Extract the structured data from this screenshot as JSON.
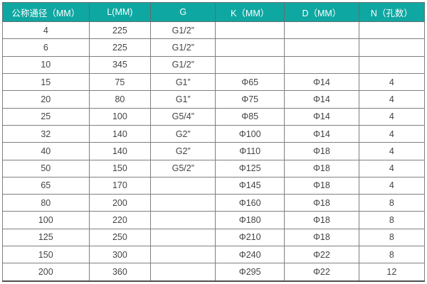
{
  "table": {
    "columns": [
      "公称通径（MM）",
      "L(MM)",
      "G",
      "K（MM）",
      "D（MM）",
      "N（孔数）"
    ],
    "rows": [
      [
        "4",
        "225",
        "G1/2”",
        "",
        "",
        ""
      ],
      [
        "6",
        "225",
        "G1/2”",
        "",
        "",
        ""
      ],
      [
        "10",
        "345",
        "G1/2”",
        "",
        "",
        ""
      ],
      [
        "15",
        "75",
        "G1”",
        "Φ65",
        "Φ14",
        "4"
      ],
      [
        "20",
        "80",
        "G1”",
        "Φ75",
        "Φ14",
        "4"
      ],
      [
        "25",
        "100",
        "G5/4”",
        "Φ85",
        "Φ14",
        "4"
      ],
      [
        "32",
        "140",
        "G2”",
        "Φ100",
        "Φ14",
        "4"
      ],
      [
        "40",
        "140",
        "G2”",
        "Φ110",
        "Φ18",
        "4"
      ],
      [
        "50",
        "150",
        "G5/2”",
        "Φ125",
        "Φ18",
        "4"
      ],
      [
        "65",
        "170",
        "",
        "Φ145",
        "Φ18",
        "4"
      ],
      [
        "80",
        "200",
        "",
        "Φ160",
        "Φ18",
        "8"
      ],
      [
        "100",
        "220",
        "",
        "Φ180",
        "Φ18",
        "8"
      ],
      [
        "125",
        "250",
        "",
        "Φ210",
        "Φ18",
        "8"
      ],
      [
        "150",
        "300",
        "",
        "Φ240",
        "Φ22",
        "8"
      ],
      [
        "200",
        "360",
        "",
        "Φ295",
        "Φ22",
        "12"
      ]
    ],
    "colors": {
      "header_bg": "#0fa7a2",
      "header_text": "#ffffff",
      "border": "#7f7f7f",
      "outer_border": "#a8a8a8",
      "bottom_border": "#4f4f4f",
      "cell_text": "#444444",
      "row_bg": "#ffffff"
    }
  },
  "chart_data": {
    "type": "table",
    "title": "",
    "columns": [
      "公称通径（MM）",
      "L(MM)",
      "G",
      "K（MM）",
      "D（MM）",
      "N（孔数）"
    ],
    "rows": [
      [
        "4",
        "225",
        "G1/2”",
        "",
        "",
        ""
      ],
      [
        "6",
        "225",
        "G1/2”",
        "",
        "",
        ""
      ],
      [
        "10",
        "345",
        "G1/2”",
        "",
        "",
        ""
      ],
      [
        "15",
        "75",
        "G1”",
        "Φ65",
        "Φ14",
        "4"
      ],
      [
        "20",
        "80",
        "G1”",
        "Φ75",
        "Φ14",
        "4"
      ],
      [
        "25",
        "100",
        "G5/4”",
        "Φ85",
        "Φ14",
        "4"
      ],
      [
        "32",
        "140",
        "G2”",
        "Φ100",
        "Φ14",
        "4"
      ],
      [
        "40",
        "140",
        "G2”",
        "Φ110",
        "Φ18",
        "4"
      ],
      [
        "50",
        "150",
        "G5/2”",
        "Φ125",
        "Φ18",
        "4"
      ],
      [
        "65",
        "170",
        "",
        "Φ145",
        "Φ18",
        "4"
      ],
      [
        "80",
        "200",
        "",
        "Φ160",
        "Φ18",
        "8"
      ],
      [
        "100",
        "220",
        "",
        "Φ180",
        "Φ18",
        "8"
      ],
      [
        "125",
        "250",
        "",
        "Φ210",
        "Φ18",
        "8"
      ],
      [
        "150",
        "300",
        "",
        "Φ240",
        "Φ22",
        "8"
      ],
      [
        "200",
        "360",
        "",
        "Φ295",
        "Φ22",
        "12"
      ]
    ]
  }
}
